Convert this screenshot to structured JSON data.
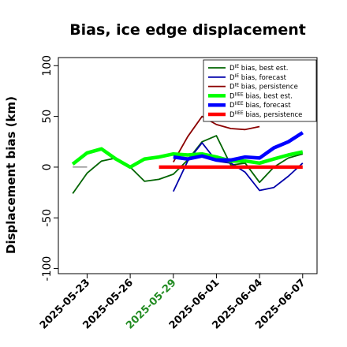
{
  "chart_data": {
    "type": "line",
    "title": "Bias, ice edge displacement",
    "xlabel": "",
    "ylabel": "Displacement bias (km)",
    "ylim": [
      -105,
      108
    ],
    "yticks": [
      -100,
      -50,
      0,
      50,
      100
    ],
    "x_range": [
      "2025-05-21",
      "2025-06-08"
    ],
    "xticks": [
      "2025-05-23",
      "2025-05-26",
      "2025-05-29",
      "2025-06-01",
      "2025-06-04",
      "2025-06-07"
    ],
    "highlight_tick": "2025-05-29",
    "highlight_color": "#228B22",
    "grid": false,
    "legend_position": "top-right",
    "zero_segment": {
      "x": [
        "2025-05-22",
        "2025-05-23"
      ],
      "y": 0,
      "color": "#555555"
    },
    "series": [
      {
        "name": "D^IE bias, best est.",
        "sup": "IE",
        "label": "bias, best est.",
        "color": "#006400",
        "width": 1.8,
        "x": [
          "2025-05-22",
          "2025-05-23",
          "2025-05-24",
          "2025-05-25",
          "2025-05-26",
          "2025-05-27",
          "2025-05-28",
          "2025-05-29",
          "2025-05-30",
          "2025-05-31",
          "2025-06-01",
          "2025-06-02",
          "2025-06-03",
          "2025-06-04",
          "2025-06-05",
          "2025-06-06",
          "2025-06-07"
        ],
        "y": [
          -26,
          -6,
          6,
          9,
          0,
          -14,
          -12,
          -7,
          7,
          25,
          31,
          2,
          4,
          -15,
          0,
          9,
          13
        ]
      },
      {
        "name": "D^IE bias, forecast",
        "sup": "IE",
        "label": "bias, forecast",
        "color": "#0000AA",
        "width": 1.8,
        "x": [
          "2025-05-29",
          "2025-05-30",
          "2025-05-31",
          "2025-06-01",
          "2025-06-02",
          "2025-06-03",
          "2025-06-04",
          "2025-06-05",
          "2025-06-06",
          "2025-06-07"
        ],
        "y": [
          -24,
          6,
          24,
          6,
          4,
          -5,
          -23,
          -20,
          -9,
          4
        ]
      },
      {
        "name": "D^IE bias, persistence",
        "sup": "IE",
        "label": "bias, persistence",
        "color": "#8B0000",
        "width": 1.8,
        "x": [
          "2025-05-29",
          "2025-05-30",
          "2025-05-31",
          "2025-06-01",
          "2025-06-02",
          "2025-06-03",
          "2025-06-04"
        ],
        "y": [
          5,
          30,
          50,
          42,
          38,
          37,
          40
        ]
      },
      {
        "name": "D^IIEE bias, best est.",
        "sup": "IIEE",
        "label": "bias, best est.",
        "color": "#00FF00",
        "width": 4.5,
        "x": [
          "2025-05-22",
          "2025-05-23",
          "2025-05-24",
          "2025-05-25",
          "2025-05-26",
          "2025-05-27",
          "2025-05-28",
          "2025-05-29",
          "2025-05-30",
          "2025-05-31",
          "2025-06-01",
          "2025-06-02",
          "2025-06-03",
          "2025-06-04",
          "2025-06-05",
          "2025-06-06",
          "2025-06-07"
        ],
        "y": [
          3,
          14,
          18,
          8,
          0,
          8,
          10,
          13,
          12,
          13,
          10,
          6,
          6,
          4,
          8,
          12,
          15
        ]
      },
      {
        "name": "D^IIEE bias, forecast",
        "sup": "IIEE",
        "label": "bias, forecast",
        "color": "#0000FF",
        "width": 4.5,
        "x": [
          "2025-05-29",
          "2025-05-30",
          "2025-05-31",
          "2025-06-01",
          "2025-06-02",
          "2025-06-03",
          "2025-06-04",
          "2025-06-05",
          "2025-06-06",
          "2025-06-07"
        ],
        "y": [
          10,
          8,
          11,
          7,
          7,
          10,
          9,
          19,
          25,
          34
        ]
      },
      {
        "name": "D^IIEE bias, persistence",
        "sup": "IIEE",
        "label": "bias, persistence",
        "color": "#FF0000",
        "width": 4.5,
        "x": [
          "2025-05-28",
          "2025-05-29",
          "2025-05-30",
          "2025-05-31",
          "2025-06-01",
          "2025-06-02",
          "2025-06-03",
          "2025-06-04",
          "2025-06-05",
          "2025-06-06",
          "2025-06-07"
        ],
        "y": [
          0,
          0,
          0,
          0,
          0,
          0,
          0,
          0,
          0,
          0,
          0
        ]
      }
    ]
  }
}
